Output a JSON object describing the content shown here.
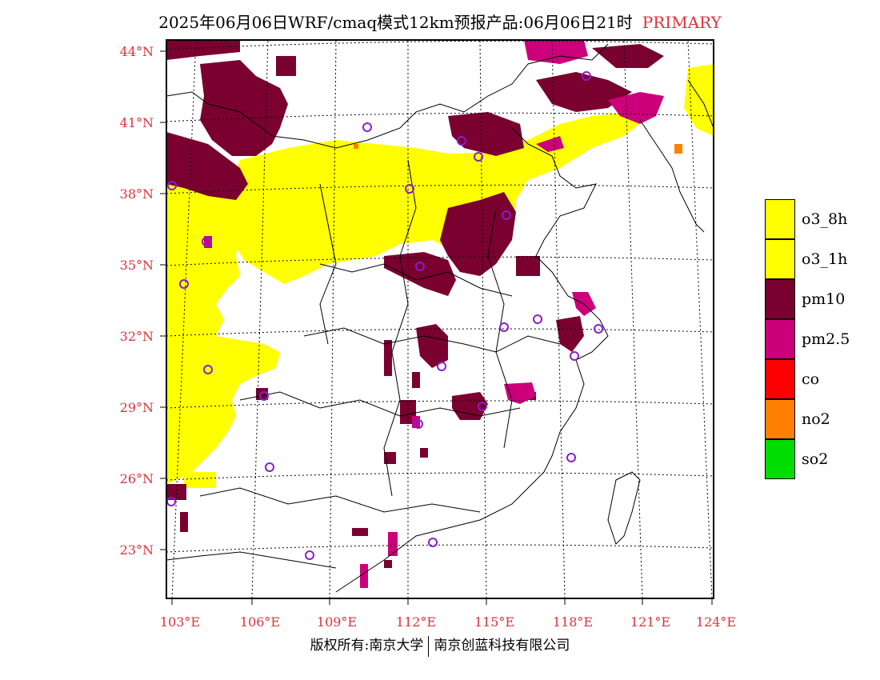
{
  "title": {
    "main": "2025年06月06日WRF/cmaq模式12km预报产品:06月06日21时",
    "tag": "PRIMARY"
  },
  "colors": {
    "o3_8h": "#ffff00",
    "o3_1h": "#ffff00",
    "pm10": "#7a0030",
    "pm2.5": "#cc007a",
    "co": "#ff0000",
    "no2": "#ff7f00",
    "so2": "#00dd00",
    "axis_label": "#e0303a",
    "station_marker": "#8a1ed0"
  },
  "lat_labels": [
    "44°N",
    "41°N",
    "38°N",
    "35°N",
    "32°N",
    "29°N",
    "26°N",
    "23°N"
  ],
  "lon_labels": [
    "103°E",
    "106°E",
    "109°E",
    "112°E",
    "115°E",
    "118°E",
    "121°E",
    "124°E"
  ],
  "legend": [
    {
      "key": "o3_8h",
      "label": "o3_8h",
      "color": "#ffff00"
    },
    {
      "key": "o3_1h",
      "label": "o3_1h",
      "color": "#ffff00"
    },
    {
      "key": "pm10",
      "label": "pm10",
      "color": "#7a0030"
    },
    {
      "key": "pm25",
      "label": "pm2.5",
      "color": "#cc007a"
    },
    {
      "key": "co",
      "label": "co",
      "color": "#ff0000"
    },
    {
      "key": "no2",
      "label": "no2",
      "color": "#ff7f00"
    },
    {
      "key": "so2",
      "label": "so2",
      "color": "#00dd00"
    }
  ],
  "copyright": {
    "left": "版权所有:南京大学",
    "right": "南京创蓝科技有限公司"
  }
}
